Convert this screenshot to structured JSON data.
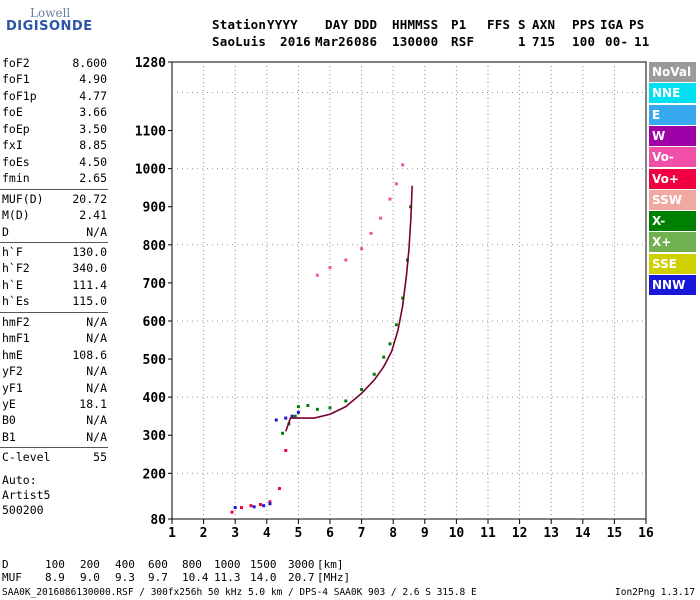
{
  "logo": {
    "line1": "Lowell",
    "line2": "DIGISONDE"
  },
  "header": {
    "labels": [
      "Station",
      "YYYY",
      "DAY",
      "DDD",
      "HHMMSS",
      "P1",
      "FFS",
      "S",
      "AXN",
      "PPS",
      "IGA",
      "PS"
    ],
    "values": [
      "SaoLuis",
      "2016",
      "Mar26",
      "086",
      "130000",
      "RSF",
      "",
      "1",
      "715",
      "100",
      "00-",
      "11"
    ]
  },
  "params": [
    {
      "name": "foF2",
      "value": "8.600"
    },
    {
      "name": "foF1",
      "value": "4.90"
    },
    {
      "name": "foF1p",
      "value": "4.77"
    },
    {
      "name": "foE",
      "value": "3.66"
    },
    {
      "name": "foEp",
      "value": "3.50"
    },
    {
      "name": "fxI",
      "value": "8.85"
    },
    {
      "name": "foEs",
      "value": "4.50"
    },
    {
      "name": "fmin",
      "value": "2.65"
    },
    {
      "name": "MUF(D)",
      "value": "20.72"
    },
    {
      "name": "M(D)",
      "value": "2.41"
    },
    {
      "name": "D",
      "value": "N/A"
    },
    {
      "name": "h`F",
      "value": "130.0"
    },
    {
      "name": "h`F2",
      "value": "340.0"
    },
    {
      "name": "h`E",
      "value": "111.4"
    },
    {
      "name": "h`Es",
      "value": "115.0"
    },
    {
      "name": "hmF2",
      "value": "N/A"
    },
    {
      "name": "hmF1",
      "value": "N/A"
    },
    {
      "name": "hmE",
      "value": "108.6"
    },
    {
      "name": "yF2",
      "value": "N/A"
    },
    {
      "name": "yF1",
      "value": "N/A"
    },
    {
      "name": "yE",
      "value": "18.1"
    },
    {
      "name": "B0",
      "value": "N/A"
    },
    {
      "name": "B1",
      "value": "N/A"
    },
    {
      "name": "C-level",
      "value": "55"
    }
  ],
  "auto": {
    "line1": "Auto:",
    "line2": "Artist5",
    "line3": "500200"
  },
  "legend": [
    {
      "label": "NoVal",
      "color": "#9a9a9a"
    },
    {
      "label": "NNE",
      "color": "#00e0f0"
    },
    {
      "label": "E",
      "color": "#38a8f0"
    },
    {
      "label": "W",
      "color": "#a000a8"
    },
    {
      "label": "Vo-",
      "color": "#f050a8"
    },
    {
      "label": "Vo+",
      "color": "#f00040"
    },
    {
      "label": "SSW",
      "color": "#f0a8a0"
    },
    {
      "label": "X-",
      "color": "#008000"
    },
    {
      "label": "X+",
      "color": "#70b050"
    },
    {
      "label": "SSE",
      "color": "#d0d000"
    },
    {
      "label": "NNW",
      "color": "#1818d8"
    }
  ],
  "muf_table": {
    "row1_label": "D",
    "distances": [
      "100",
      "200",
      "400",
      "600",
      "800",
      "1000",
      "1500",
      "3000"
    ],
    "row1_unit": "[km]",
    "row2_label": "MUF",
    "mufs": [
      "8.9",
      "9.0",
      "9.3",
      "9.7",
      "10.4",
      "11.3",
      "14.0",
      "20.7"
    ],
    "row2_unit": "[MHz]"
  },
  "footer": {
    "left": "SAA0K_2016086130000.RSF / 300fx256h 50 kHz 5.0 km / DPS-4 SAA0K 903 / 2.6 S 315.8 E",
    "right": "Ion2Png 1.3.17"
  },
  "chart_data": {
    "type": "scatter",
    "title": "",
    "xlabel": "",
    "ylabel": "",
    "xlim": [
      1,
      16
    ],
    "ylim": [
      80,
      1280
    ],
    "x_ticks": [
      1,
      2,
      3,
      4,
      5,
      6,
      7,
      8,
      9,
      10,
      11,
      12,
      13,
      14,
      15,
      16
    ],
    "y_ticks": [
      80,
      200,
      300,
      400,
      500,
      600,
      700,
      800,
      900,
      1000,
      1100,
      1280
    ],
    "grid": "dotted vertical at each MHz, dotted horizontal at 200 km intervals",
    "series": [
      {
        "name": "X-",
        "color": "#008000",
        "x": [
          4.5,
          4.7,
          4.9,
          5.0,
          5.3,
          5.6,
          6.0,
          6.5,
          7.0,
          7.4,
          7.7,
          7.9,
          8.1,
          8.3,
          8.45,
          8.55
        ],
        "y": [
          305,
          330,
          350,
          375,
          378,
          368,
          372,
          390,
          420,
          460,
          505,
          540,
          590,
          660,
          760,
          900
        ]
      },
      {
        "name": "Vo-",
        "color": "#f050a8",
        "x": [
          5.6,
          6.0,
          6.5,
          7.0,
          7.3,
          7.6,
          7.9,
          8.1,
          8.3
        ],
        "y": [
          720,
          740,
          760,
          790,
          830,
          870,
          920,
          960,
          1010
        ]
      },
      {
        "name": "Vo+",
        "color": "#f00040",
        "x": [
          2.9,
          3.2,
          3.5,
          3.8,
          4.1,
          4.4,
          4.6
        ],
        "y": [
          98,
          110,
          115,
          118,
          125,
          160,
          260
        ]
      },
      {
        "name": "NNW",
        "color": "#1818d8",
        "x": [
          3.0,
          3.6,
          3.9,
          4.1,
          4.3,
          4.6,
          4.8,
          5.0
        ],
        "y": [
          110,
          112,
          115,
          120,
          340,
          345,
          350,
          360
        ]
      },
      {
        "name": "fitted trace",
        "color": "#7a0030",
        "x": [
          4.6,
          4.75,
          5.0,
          5.5,
          6.0,
          6.5,
          7.0,
          7.4,
          7.7,
          7.95,
          8.15,
          8.3,
          8.42,
          8.5,
          8.56,
          8.6
        ],
        "y": [
          310,
          345,
          345,
          345,
          355,
          375,
          410,
          445,
          480,
          520,
          575,
          640,
          720,
          790,
          870,
          955
        ]
      }
    ]
  }
}
